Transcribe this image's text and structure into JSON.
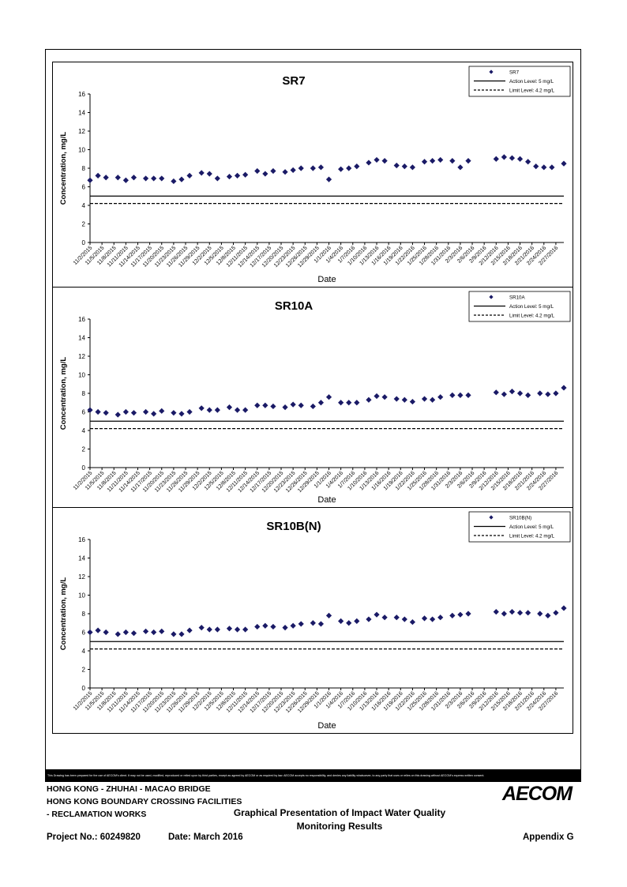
{
  "footer": {
    "disclaimer": "This Drawing has been prepared for the use of AECOM's client. It may not be used, modified, reproduced or relied upon by third parties, except as agreed by AECOM or as required by law. AECOM accepts no responsibility, and denies any liability whatsoever, to any party that uses or relies on this drawing without AECOM's express written consent.",
    "project_line1": "HONG KONG - ZHUHAI - MACAO BRIDGE",
    "project_line2": "HONG KONG BOUNDARY CROSSING FACILITIES",
    "project_line3": "- RECLAMATION WORKS",
    "drawing_title_line1": "Graphical Presentation of Impact Water Quality",
    "drawing_title_line2": "Monitoring Results",
    "project_no": "Project No.: 60249820",
    "date": "Date: March 2016",
    "appendix": "Appendix G",
    "logo": "AECOM"
  },
  "chart_data": [
    {
      "type": "scatter",
      "title": "SR7",
      "xlabel": "Date",
      "ylabel": "Concentration, mg/L",
      "ylim": [
        0,
        16
      ],
      "yticks": [
        0,
        2,
        4,
        6,
        8,
        10,
        12,
        14,
        16
      ],
      "x_start": "11/2/2015",
      "x_end": "2/29/2016",
      "x_tick_labels": [
        "11/2/2015",
        "11/5/2015",
        "11/8/2015",
        "11/11/2015",
        "11/14/2015",
        "11/17/2015",
        "11/20/2015",
        "11/23/2015",
        "11/26/2015",
        "11/29/2015",
        "12/2/2015",
        "12/5/2015",
        "12/8/2015",
        "12/11/2015",
        "12/14/2015",
        "12/17/2015",
        "12/20/2015",
        "12/23/2015",
        "12/26/2015",
        "12/29/2015",
        "1/1/2016",
        "1/4/2016",
        "1/7/2016",
        "1/10/2016",
        "1/13/2016",
        "1/16/2016",
        "1/19/2016",
        "1/22/2016",
        "1/25/2016",
        "1/28/2016",
        "1/31/2016",
        "2/3/2016",
        "2/6/2016",
        "2/9/2016",
        "2/12/2016",
        "2/15/2016",
        "2/18/2016",
        "2/21/2016",
        "2/24/2016",
        "2/27/2016"
      ],
      "grid": false,
      "legend_position": "top-right",
      "series": [
        {
          "name": "SR7",
          "marker": "diamond",
          "color": "#1a1a66",
          "points": [
            {
              "x": "11/2/2015",
              "y": 6.7
            },
            {
              "x": "11/4/2015",
              "y": 7.2
            },
            {
              "x": "11/6/2015",
              "y": 7.0
            },
            {
              "x": "11/9/2015",
              "y": 7.0
            },
            {
              "x": "11/11/2015",
              "y": 6.7
            },
            {
              "x": "11/13/2015",
              "y": 7.0
            },
            {
              "x": "11/16/2015",
              "y": 6.9
            },
            {
              "x": "11/18/2015",
              "y": 6.9
            },
            {
              "x": "11/20/2015",
              "y": 6.9
            },
            {
              "x": "11/23/2015",
              "y": 6.6
            },
            {
              "x": "11/25/2015",
              "y": 6.8
            },
            {
              "x": "11/27/2015",
              "y": 7.2
            },
            {
              "x": "11/30/2015",
              "y": 7.5
            },
            {
              "x": "12/2/2015",
              "y": 7.4
            },
            {
              "x": "12/4/2015",
              "y": 6.9
            },
            {
              "x": "12/7/2015",
              "y": 7.1
            },
            {
              "x": "12/9/2015",
              "y": 7.2
            },
            {
              "x": "12/11/2015",
              "y": 7.3
            },
            {
              "x": "12/14/2015",
              "y": 7.7
            },
            {
              "x": "12/16/2015",
              "y": 7.4
            },
            {
              "x": "12/18/2015",
              "y": 7.7
            },
            {
              "x": "12/21/2015",
              "y": 7.6
            },
            {
              "x": "12/23/2015",
              "y": 7.8
            },
            {
              "x": "12/25/2015",
              "y": 8.0
            },
            {
              "x": "12/28/2015",
              "y": 8.0
            },
            {
              "x": "12/30/2015",
              "y": 8.1
            },
            {
              "x": "1/1/2016",
              "y": 6.8
            },
            {
              "x": "1/4/2016",
              "y": 7.9
            },
            {
              "x": "1/6/2016",
              "y": 8.0
            },
            {
              "x": "1/8/2016",
              "y": 8.2
            },
            {
              "x": "1/11/2016",
              "y": 8.6
            },
            {
              "x": "1/13/2016",
              "y": 8.9
            },
            {
              "x": "1/15/2016",
              "y": 8.8
            },
            {
              "x": "1/18/2016",
              "y": 8.3
            },
            {
              "x": "1/20/2016",
              "y": 8.2
            },
            {
              "x": "1/22/2016",
              "y": 8.1
            },
            {
              "x": "1/25/2016",
              "y": 8.7
            },
            {
              "x": "1/27/2016",
              "y": 8.8
            },
            {
              "x": "1/29/2016",
              "y": 8.9
            },
            {
              "x": "2/1/2016",
              "y": 8.8
            },
            {
              "x": "2/3/2016",
              "y": 8.1
            },
            {
              "x": "2/5/2016",
              "y": 8.8
            },
            {
              "x": "2/12/2016",
              "y": 9.0
            },
            {
              "x": "2/14/2016",
              "y": 9.2
            },
            {
              "x": "2/16/2016",
              "y": 9.1
            },
            {
              "x": "2/18/2016",
              "y": 9.0
            },
            {
              "x": "2/20/2016",
              "y": 8.7
            },
            {
              "x": "2/22/2016",
              "y": 8.2
            },
            {
              "x": "2/24/2016",
              "y": 8.1
            },
            {
              "x": "2/26/2016",
              "y": 8.1
            },
            {
              "x": "2/29/2016",
              "y": 8.5
            }
          ]
        }
      ],
      "reference_lines": [
        {
          "name": "Action Level: 5 mg/L",
          "y": 5,
          "style": "solid"
        },
        {
          "name": "Limit Level: 4.2 mg/L",
          "y": 4.2,
          "style": "dashed"
        }
      ]
    },
    {
      "type": "scatter",
      "title": "SR10A",
      "xlabel": "Date",
      "ylabel": "Concentration, mg/L",
      "ylim": [
        0,
        16
      ],
      "yticks": [
        0,
        2,
        4,
        6,
        8,
        10,
        12,
        14,
        16
      ],
      "x_start": "11/2/2015",
      "x_end": "2/29/2016",
      "x_tick_labels": [
        "11/2/2015",
        "11/5/2015",
        "11/8/2015",
        "11/11/2015",
        "11/14/2015",
        "11/17/2015",
        "11/20/2015",
        "11/23/2015",
        "11/26/2015",
        "11/29/2015",
        "12/2/2015",
        "12/5/2015",
        "12/8/2015",
        "12/11/2015",
        "12/14/2015",
        "12/17/2015",
        "12/20/2015",
        "12/23/2015",
        "12/26/2015",
        "12/29/2015",
        "1/1/2016",
        "1/4/2016",
        "1/7/2016",
        "1/10/2016",
        "1/13/2016",
        "1/16/2016",
        "1/19/2016",
        "1/22/2016",
        "1/25/2016",
        "1/28/2016",
        "1/31/2016",
        "2/3/2016",
        "2/6/2016",
        "2/9/2016",
        "2/12/2016",
        "2/15/2016",
        "2/18/2016",
        "2/21/2016",
        "2/24/2016",
        "2/27/2016"
      ],
      "grid": false,
      "legend_position": "top-right",
      "series": [
        {
          "name": "SR10A",
          "marker": "diamond",
          "color": "#1a1a66",
          "points": [
            {
              "x": "11/2/2015",
              "y": 6.2
            },
            {
              "x": "11/4/2015",
              "y": 6.0
            },
            {
              "x": "11/6/2015",
              "y": 5.9
            },
            {
              "x": "11/9/2015",
              "y": 5.7
            },
            {
              "x": "11/11/2015",
              "y": 6.0
            },
            {
              "x": "11/13/2015",
              "y": 5.9
            },
            {
              "x": "11/16/2015",
              "y": 6.0
            },
            {
              "x": "11/18/2015",
              "y": 5.8
            },
            {
              "x": "11/20/2015",
              "y": 6.1
            },
            {
              "x": "11/23/2015",
              "y": 5.9
            },
            {
              "x": "11/25/2015",
              "y": 5.8
            },
            {
              "x": "11/27/2015",
              "y": 6.0
            },
            {
              "x": "11/30/2015",
              "y": 6.4
            },
            {
              "x": "12/2/2015",
              "y": 6.2
            },
            {
              "x": "12/4/2015",
              "y": 6.2
            },
            {
              "x": "12/7/2015",
              "y": 6.5
            },
            {
              "x": "12/9/2015",
              "y": 6.2
            },
            {
              "x": "12/11/2015",
              "y": 6.2
            },
            {
              "x": "12/14/2015",
              "y": 6.7
            },
            {
              "x": "12/16/2015",
              "y": 6.7
            },
            {
              "x": "12/18/2015",
              "y": 6.6
            },
            {
              "x": "12/21/2015",
              "y": 6.5
            },
            {
              "x": "12/23/2015",
              "y": 6.8
            },
            {
              "x": "12/25/2015",
              "y": 6.7
            },
            {
              "x": "12/28/2015",
              "y": 6.6
            },
            {
              "x": "12/30/2015",
              "y": 7.0
            },
            {
              "x": "1/1/2016",
              "y": 7.6
            },
            {
              "x": "1/4/2016",
              "y": 7.0
            },
            {
              "x": "1/6/2016",
              "y": 7.0
            },
            {
              "x": "1/8/2016",
              "y": 7.0
            },
            {
              "x": "1/11/2016",
              "y": 7.3
            },
            {
              "x": "1/13/2016",
              "y": 7.7
            },
            {
              "x": "1/15/2016",
              "y": 7.6
            },
            {
              "x": "1/18/2016",
              "y": 7.4
            },
            {
              "x": "1/20/2016",
              "y": 7.3
            },
            {
              "x": "1/22/2016",
              "y": 7.1
            },
            {
              "x": "1/25/2016",
              "y": 7.4
            },
            {
              "x": "1/27/2016",
              "y": 7.3
            },
            {
              "x": "1/29/2016",
              "y": 7.6
            },
            {
              "x": "2/1/2016",
              "y": 7.8
            },
            {
              "x": "2/3/2016",
              "y": 7.8
            },
            {
              "x": "2/5/2016",
              "y": 7.8
            },
            {
              "x": "2/12/2016",
              "y": 8.1
            },
            {
              "x": "2/14/2016",
              "y": 7.9
            },
            {
              "x": "2/16/2016",
              "y": 8.2
            },
            {
              "x": "2/18/2016",
              "y": 8.0
            },
            {
              "x": "2/20/2016",
              "y": 7.8
            },
            {
              "x": "2/23/2016",
              "y": 8.0
            },
            {
              "x": "2/25/2016",
              "y": 7.9
            },
            {
              "x": "2/27/2016",
              "y": 8.0
            },
            {
              "x": "2/29/2016",
              "y": 8.6
            }
          ]
        }
      ],
      "reference_lines": [
        {
          "name": "Action Level: 5 mg/L",
          "y": 5,
          "style": "solid"
        },
        {
          "name": "Limit Level: 4.2 mg/L",
          "y": 4.2,
          "style": "dashed"
        }
      ]
    },
    {
      "type": "scatter",
      "title": "SR10B(N)",
      "xlabel": "Date",
      "ylabel": "Concentration, mg/L",
      "ylim": [
        0,
        16
      ],
      "yticks": [
        0,
        2,
        4,
        6,
        8,
        10,
        12,
        14,
        16
      ],
      "x_start": "11/2/2015",
      "x_end": "2/29/2016",
      "x_tick_labels": [
        "11/2/2015",
        "11/5/2015",
        "11/8/2015",
        "11/11/2015",
        "11/14/2015",
        "11/17/2015",
        "11/20/2015",
        "11/23/2015",
        "11/26/2015",
        "11/29/2015",
        "12/2/2015",
        "12/5/2015",
        "12/8/2015",
        "12/11/2015",
        "12/14/2015",
        "12/17/2015",
        "12/20/2015",
        "12/23/2015",
        "12/26/2015",
        "12/29/2015",
        "1/1/2016",
        "1/4/2016",
        "1/7/2016",
        "1/10/2016",
        "1/13/2016",
        "1/16/2016",
        "1/19/2016",
        "1/22/2016",
        "1/25/2016",
        "1/28/2016",
        "1/31/2016",
        "2/3/2016",
        "2/6/2016",
        "2/9/2016",
        "2/12/2016",
        "2/15/2016",
        "2/18/2016",
        "2/21/2016",
        "2/24/2016",
        "2/27/2016"
      ],
      "grid": false,
      "legend_position": "top-right",
      "series": [
        {
          "name": "SR10B(N)",
          "marker": "diamond",
          "color": "#1a1a66",
          "points": [
            {
              "x": "11/2/2015",
              "y": 6.0
            },
            {
              "x": "11/4/2015",
              "y": 6.2
            },
            {
              "x": "11/6/2015",
              "y": 6.0
            },
            {
              "x": "11/9/2015",
              "y": 5.8
            },
            {
              "x": "11/11/2015",
              "y": 6.0
            },
            {
              "x": "11/13/2015",
              "y": 5.9
            },
            {
              "x": "11/16/2015",
              "y": 6.1
            },
            {
              "x": "11/18/2015",
              "y": 6.0
            },
            {
              "x": "11/20/2015",
              "y": 6.1
            },
            {
              "x": "11/23/2015",
              "y": 5.8
            },
            {
              "x": "11/25/2015",
              "y": 5.8
            },
            {
              "x": "11/27/2015",
              "y": 6.2
            },
            {
              "x": "11/30/2015",
              "y": 6.5
            },
            {
              "x": "12/2/2015",
              "y": 6.3
            },
            {
              "x": "12/4/2015",
              "y": 6.3
            },
            {
              "x": "12/7/2015",
              "y": 6.4
            },
            {
              "x": "12/9/2015",
              "y": 6.3
            },
            {
              "x": "12/11/2015",
              "y": 6.3
            },
            {
              "x": "12/14/2015",
              "y": 6.6
            },
            {
              "x": "12/16/2015",
              "y": 6.7
            },
            {
              "x": "12/18/2015",
              "y": 6.6
            },
            {
              "x": "12/21/2015",
              "y": 6.5
            },
            {
              "x": "12/23/2015",
              "y": 6.7
            },
            {
              "x": "12/25/2015",
              "y": 6.9
            },
            {
              "x": "12/28/2015",
              "y": 7.0
            },
            {
              "x": "12/30/2015",
              "y": 6.9
            },
            {
              "x": "1/1/2016",
              "y": 7.8
            },
            {
              "x": "1/4/2016",
              "y": 7.2
            },
            {
              "x": "1/6/2016",
              "y": 7.0
            },
            {
              "x": "1/8/2016",
              "y": 7.2
            },
            {
              "x": "1/11/2016",
              "y": 7.4
            },
            {
              "x": "1/13/2016",
              "y": 7.9
            },
            {
              "x": "1/15/2016",
              "y": 7.6
            },
            {
              "x": "1/18/2016",
              "y": 7.6
            },
            {
              "x": "1/20/2016",
              "y": 7.4
            },
            {
              "x": "1/22/2016",
              "y": 7.1
            },
            {
              "x": "1/25/2016",
              "y": 7.5
            },
            {
              "x": "1/27/2016",
              "y": 7.4
            },
            {
              "x": "1/29/2016",
              "y": 7.6
            },
            {
              "x": "2/1/2016",
              "y": 7.8
            },
            {
              "x": "2/3/2016",
              "y": 7.9
            },
            {
              "x": "2/5/2016",
              "y": 8.0
            },
            {
              "x": "2/12/2016",
              "y": 8.2
            },
            {
              "x": "2/14/2016",
              "y": 8.0
            },
            {
              "x": "2/16/2016",
              "y": 8.2
            },
            {
              "x": "2/18/2016",
              "y": 8.1
            },
            {
              "x": "2/20/2016",
              "y": 8.1
            },
            {
              "x": "2/23/2016",
              "y": 8.0
            },
            {
              "x": "2/25/2016",
              "y": 7.8
            },
            {
              "x": "2/27/2016",
              "y": 8.1
            },
            {
              "x": "2/29/2016",
              "y": 8.6
            }
          ]
        }
      ],
      "reference_lines": [
        {
          "name": "Action Level: 5 mg/L",
          "y": 5,
          "style": "solid"
        },
        {
          "name": "Limit Level: 4.2 mg/L",
          "y": 4.2,
          "style": "dashed"
        }
      ]
    }
  ]
}
